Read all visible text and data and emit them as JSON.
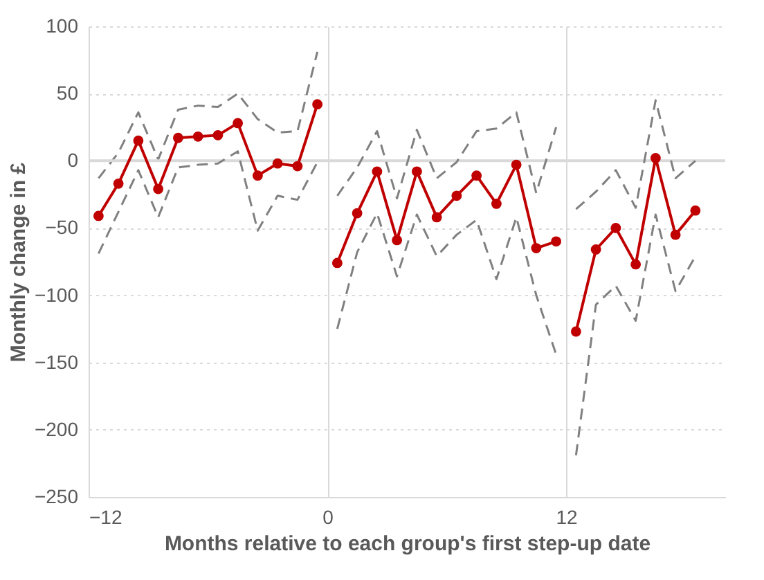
{
  "chart_data": {
    "type": "line",
    "xlabel": "Months relative to each group's first step-up date",
    "ylabel": "Monthly change in £",
    "xlim": [
      -12,
      20
    ],
    "xticks": [
      -12,
      0,
      12
    ],
    "ylim": [
      -250,
      100
    ],
    "yticks": [
      -250,
      -200,
      -150,
      -100,
      -50,
      0,
      50,
      100
    ],
    "grid": true,
    "marker": "circle",
    "line_style": "solid",
    "ref_lines": [
      {
        "axis": "y",
        "value": 0,
        "color": "#d9d9d9"
      }
    ],
    "series": [
      {
        "color": "#c00000",
        "x": [
          -11.5,
          -10.5,
          -9.5,
          -8.5,
          -7.5,
          -6.5,
          -5.5,
          -4.5,
          -3.5,
          -2.5,
          -1.5,
          -0.5
        ],
        "values": [
          -41,
          -17,
          15,
          -21,
          17,
          18,
          19,
          28,
          -11,
          -2,
          -4,
          42
        ]
      },
      {
        "color": "#c00000",
        "x": [
          0.5,
          1.5,
          2.5,
          3.5,
          4.5,
          5.5,
          6.5,
          7.5,
          8.5,
          9.5,
          10.5,
          11.5
        ],
        "values": [
          -76,
          -39,
          -8,
          -59,
          -8,
          -42,
          -26,
          -11,
          -32,
          -3,
          -65,
          -60
        ]
      },
      {
        "color": "#c00000",
        "x": [
          12.5,
          13.5,
          14.5,
          15.5,
          16.5,
          17.5,
          18.5
        ],
        "values": [
          -127,
          -66,
          -50,
          -77,
          2,
          -55,
          -37
        ]
      },
      {
        "color": "#808080",
        "marker": "none",
        "line_style": "dashed",
        "x": [
          -11.5,
          -10.5,
          -9.5,
          -8.5,
          -7.5,
          -6.5,
          -5.5,
          -4.5,
          -3.5,
          -2.5,
          -1.5,
          -0.5
        ],
        "values": [
          -13,
          6,
          36,
          1,
          38,
          41,
          40,
          50,
          31,
          21,
          22,
          81
        ]
      },
      {
        "color": "#808080",
        "marker": "none",
        "line_style": "dashed",
        "x": [
          -11.5,
          -10.5,
          -9.5,
          -8.5,
          -7.5,
          -6.5,
          -5.5,
          -4.5,
          -3.5,
          -2.5,
          -1.5,
          -0.5
        ],
        "values": [
          -69,
          -38,
          -7,
          -42,
          -5,
          -3,
          -2,
          7,
          -52,
          -26,
          -29,
          -1
        ]
      },
      {
        "color": "#808080",
        "marker": "none",
        "line_style": "dashed",
        "x": [
          0.5,
          1.5,
          2.5,
          3.5,
          4.5,
          5.5,
          6.5,
          7.5,
          8.5,
          9.5,
          10.5,
          11.5
        ],
        "values": [
          -26,
          -5,
          22,
          -28,
          23,
          -13,
          -1,
          22,
          24,
          36,
          -24,
          25
        ]
      },
      {
        "color": "#808080",
        "marker": "none",
        "line_style": "dashed",
        "x": [
          0.5,
          1.5,
          2.5,
          3.5,
          4.5,
          5.5,
          6.5,
          7.5,
          8.5,
          9.5,
          10.5,
          11.5
        ],
        "values": [
          -125,
          -68,
          -39,
          -86,
          -40,
          -71,
          -55,
          -44,
          -88,
          -42,
          -100,
          -144
        ]
      },
      {
        "color": "#808080",
        "marker": "none",
        "line_style": "dashed",
        "x": [
          12.5,
          13.5,
          14.5,
          15.5,
          16.5,
          17.5,
          18.5
        ],
        "values": [
          -36,
          -23,
          -7,
          -35,
          45,
          -13,
          0
        ]
      },
      {
        "color": "#808080",
        "marker": "none",
        "line_style": "dashed",
        "x": [
          12.5,
          13.5,
          14.5,
          15.5,
          16.5,
          17.5,
          18.5
        ],
        "values": [
          -219,
          -107,
          -93,
          -119,
          -40,
          -97,
          -71
        ]
      }
    ]
  }
}
